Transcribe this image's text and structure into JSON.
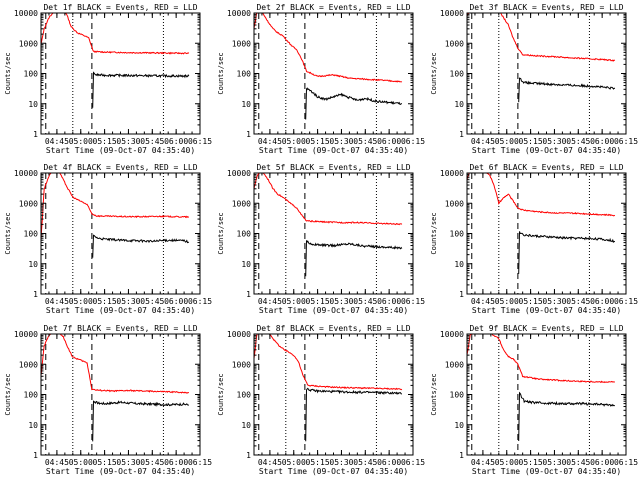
{
  "chart_data": [
    {
      "type": "line",
      "title": "Det 1f BLACK = Events, RED = LLD",
      "xlabel": "Start Time (09-Oct-07 04:35:40)",
      "ylabel": "Counts/sec",
      "ylog": true,
      "ylim": [
        1,
        10000
      ],
      "xlim": [
        "04:35",
        "06:15"
      ],
      "xticks": [
        "04:45",
        "05:00",
        "05:15",
        "05:30",
        "05:45",
        "06:00",
        "06:15"
      ],
      "yticks": [
        "1",
        "10",
        "100",
        "1000",
        "10000"
      ],
      "vlines_dashed": [
        "04:38",
        "05:07"
      ],
      "vlines_dotted": [
        "04:55",
        "05:52"
      ],
      "series": [
        {
          "color": "#ff0000",
          "x": [
            "04:35",
            "04:37",
            "04:40",
            "04:43",
            "04:46",
            "04:48",
            "04:51",
            "04:54",
            "04:58",
            "05:02",
            "05:05",
            "05:08",
            "05:15",
            "05:30",
            "05:45",
            "06:00",
            "06:08"
          ],
          "values": [
            900,
            3000,
            7000,
            11000,
            12000,
            11000,
            9500,
            3500,
            2200,
            1800,
            1500,
            530,
            510,
            490,
            480,
            470,
            465
          ]
        },
        {
          "color": "#000000",
          "x": [
            "05:07.5",
            "05:08",
            "05:10",
            "05:15",
            "05:30",
            "05:45",
            "06:00",
            "06:08"
          ],
          "values": [
            8,
            100,
            90,
            88,
            86,
            84,
            83,
            82
          ]
        }
      ]
    },
    {
      "type": "line",
      "title": "Det 2f BLACK = Events, RED = LLD",
      "xlabel": "Start Time (09-Oct-07 04:35:40)",
      "ylabel": "Counts/sec",
      "ylog": true,
      "ylim": [
        1,
        10000
      ],
      "xlim": [
        "04:35",
        "06:15"
      ],
      "xticks": [
        "04:45",
        "05:00",
        "05:15",
        "05:30",
        "05:45",
        "06:00",
        "06:15"
      ],
      "yticks": [
        "1",
        "10",
        "100",
        "1000",
        "10000"
      ],
      "vlines_dashed": [
        "04:38",
        "05:07"
      ],
      "vlines_dotted": [
        "04:55",
        "05:52"
      ],
      "series": [
        {
          "color": "#ff0000",
          "x": [
            "04:35",
            "04:37",
            "04:39",
            "04:41",
            "04:44",
            "04:47",
            "04:50",
            "04:53",
            "04:56",
            "04:59",
            "05:02",
            "05:05",
            "05:08",
            "05:15",
            "05:25",
            "05:35",
            "05:45",
            "05:55",
            "06:05",
            "06:08"
          ],
          "values": [
            3000,
            12000,
            14000,
            9000,
            5000,
            3000,
            2200,
            1800,
            1200,
            800,
            600,
            300,
            120,
            80,
            90,
            70,
            65,
            60,
            55,
            52
          ]
        },
        {
          "color": "#000000",
          "x": [
            "05:07.5",
            "05:08",
            "05:11",
            "05:15",
            "05:20",
            "05:25",
            "05:30",
            "05:35",
            "05:40",
            "05:45",
            "05:52",
            "06:00",
            "06:08"
          ],
          "values": [
            3,
            32,
            26,
            17,
            14,
            17,
            20,
            16,
            13,
            15,
            12,
            11,
            10
          ]
        }
      ]
    },
    {
      "type": "line",
      "title": "Det 3f BLACK = Events, RED = LLD",
      "xlabel": "Start Time (09-Oct-07 04:35:40)",
      "ylabel": "Counts/sec",
      "ylog": true,
      "ylim": [
        1,
        10000
      ],
      "xlim": [
        "04:35",
        "06:15"
      ],
      "xticks": [
        "04:45",
        "05:00",
        "05:15",
        "05:30",
        "05:45",
        "06:00",
        "06:15"
      ],
      "yticks": [
        "1",
        "10",
        "100",
        "1000",
        "10000"
      ],
      "vlines_dashed": [
        "04:38",
        "05:07"
      ],
      "vlines_dotted": [
        "04:55",
        "05:52"
      ],
      "series": [
        {
          "color": "#ff0000",
          "x": [
            "04:35",
            "04:37",
            "04:40",
            "04:43",
            "04:46",
            "04:50",
            "04:55",
            "04:58",
            "05:01",
            "05:04",
            "05:07",
            "05:10",
            "05:20",
            "05:30",
            "05:40",
            "05:50",
            "06:00",
            "06:08"
          ],
          "values": [
            8000,
            13000,
            14000,
            14000,
            13500,
            13000,
            12000,
            7000,
            4000,
            1500,
            700,
            420,
            380,
            360,
            330,
            310,
            290,
            270
          ]
        },
        {
          "color": "#000000",
          "x": [
            "05:07.5",
            "05:08",
            "05:11",
            "05:15",
            "05:25",
            "05:35",
            "05:45",
            "05:55",
            "06:05",
            "06:08"
          ],
          "values": [
            12,
            70,
            50,
            48,
            45,
            42,
            40,
            38,
            33,
            32
          ]
        }
      ]
    },
    {
      "type": "line",
      "title": "Det 4f BLACK = Events, RED = LLD",
      "xlabel": "Start Time (09-Oct-07 04:35:40)",
      "ylabel": "Counts/sec",
      "ylog": true,
      "ylim": [
        1,
        10000
      ],
      "xlim": [
        "04:35",
        "06:15"
      ],
      "xticks": [
        "04:45",
        "05:00",
        "05:15",
        "05:30",
        "05:45",
        "06:00",
        "06:15"
      ],
      "yticks": [
        "1",
        "10",
        "100",
        "1000",
        "10000"
      ],
      "vlines_dashed": [
        "04:38",
        "05:07"
      ],
      "vlines_dotted": [
        "04:55",
        "05:52"
      ],
      "series": [
        {
          "color": "#ff0000",
          "x": [
            "04:35",
            "04:37",
            "04:40",
            "04:43",
            "04:46",
            "04:49",
            "04:52",
            "04:55",
            "04:58",
            "05:01",
            "05:04",
            "05:07",
            "05:10",
            "05:20",
            "05:30",
            "05:40",
            "05:50",
            "06:00",
            "06:08"
          ],
          "values": [
            60,
            3000,
            8000,
            14000,
            12000,
            6000,
            3000,
            1600,
            1300,
            1100,
            900,
            450,
            380,
            370,
            360,
            360,
            370,
            360,
            350
          ]
        },
        {
          "color": "#000000",
          "x": [
            "05:07.5",
            "05:08",
            "05:11",
            "05:15",
            "05:25",
            "05:35",
            "05:45",
            "05:55",
            "06:05",
            "06:08"
          ],
          "values": [
            15,
            85,
            70,
            65,
            60,
            58,
            55,
            60,
            58,
            52
          ]
        }
      ]
    },
    {
      "type": "line",
      "title": "Det 5f BLACK = Events, RED = LLD",
      "xlabel": "Start Time (09-Oct-07 04:35:40)",
      "ylabel": "Counts/sec",
      "ylog": true,
      "ylim": [
        1,
        10000
      ],
      "xlim": [
        "04:35",
        "06:15"
      ],
      "xticks": [
        "04:45",
        "05:00",
        "05:15",
        "05:30",
        "05:45",
        "06:00",
        "06:15"
      ],
      "yticks": [
        "1",
        "10",
        "100",
        "1000",
        "10000"
      ],
      "vlines_dashed": [
        "04:38",
        "05:07"
      ],
      "vlines_dotted": [
        "04:55",
        "05:52"
      ],
      "series": [
        {
          "color": "#ff0000",
          "x": [
            "04:35",
            "04:37",
            "04:39",
            "04:41",
            "04:44",
            "04:47",
            "04:50",
            "04:53",
            "04:56",
            "04:59",
            "05:02",
            "05:05",
            "05:08",
            "05:20",
            "05:30",
            "05:40",
            "05:50",
            "06:00",
            "06:08"
          ],
          "values": [
            3000,
            8000,
            12000,
            10000,
            6000,
            3000,
            2000,
            1600,
            1200,
            900,
            700,
            400,
            260,
            240,
            230,
            230,
            220,
            210,
            200
          ]
        },
        {
          "color": "#000000",
          "x": [
            "05:07.5",
            "05:08",
            "05:11",
            "05:15",
            "05:25",
            "05:35",
            "05:45",
            "05:55",
            "06:05",
            "06:08"
          ],
          "values": [
            4,
            55,
            45,
            42,
            40,
            46,
            38,
            36,
            34,
            32
          ]
        }
      ]
    },
    {
      "type": "line",
      "title": "Det 6f BLACK = Events, RED = LLD",
      "xlabel": "Start Time (09-Oct-07 04:35:40)",
      "ylabel": "Counts/sec",
      "ylog": true,
      "ylim": [
        1,
        10000
      ],
      "xlim": [
        "04:35",
        "06:15"
      ],
      "xticks": [
        "04:45",
        "05:00",
        "05:15",
        "05:30",
        "05:45",
        "06:00",
        "06:15"
      ],
      "yticks": [
        "1",
        "10",
        "100",
        "1000",
        "10000"
      ],
      "vlines_dashed": [
        "04:38",
        "05:07"
      ],
      "vlines_dotted": [
        "04:55",
        "05:52"
      ],
      "series": [
        {
          "color": "#ff0000",
          "x": [
            "04:35",
            "04:37",
            "04:40",
            "04:43",
            "04:46",
            "04:49",
            "04:52",
            "04:55",
            "04:58",
            "05:01",
            "05:04",
            "05:07",
            "05:10",
            "05:20",
            "05:30",
            "05:40",
            "05:50",
            "06:00",
            "06:08"
          ],
          "values": [
            6000,
            12000,
            14000,
            13000,
            12000,
            9000,
            4000,
            1000,
            1500,
            2000,
            1200,
            700,
            600,
            520,
            480,
            470,
            450,
            420,
            400
          ]
        },
        {
          "color": "#000000",
          "x": [
            "05:07.5",
            "05:08",
            "05:11",
            "05:15",
            "05:25",
            "05:35",
            "05:45",
            "05:55",
            "06:05",
            "06:08"
          ],
          "values": [
            5,
            110,
            90,
            85,
            78,
            72,
            70,
            68,
            60,
            55
          ]
        }
      ]
    },
    {
      "type": "line",
      "title": "Det 7f BLACK = Events, RED = LLD",
      "xlabel": "Start Time (09-Oct-07 04:35:40)",
      "ylabel": "Counts/sec",
      "ylog": true,
      "ylim": [
        1,
        10000
      ],
      "xlim": [
        "04:35",
        "06:15"
      ],
      "xticks": [
        "04:45",
        "05:00",
        "05:15",
        "05:30",
        "05:45",
        "06:00",
        "06:15"
      ],
      "yticks": [
        "1",
        "10",
        "100",
        "1000",
        "10000"
      ],
      "vlines_dashed": [
        "04:38",
        "05:07"
      ],
      "vlines_dotted": [
        "04:55",
        "05:52"
      ],
      "series": [
        {
          "color": "#ff0000",
          "x": [
            "04:35",
            "04:37",
            "04:40",
            "04:43",
            "04:46",
            "04:49",
            "04:52",
            "04:55",
            "04:58",
            "05:01",
            "05:04",
            "05:07",
            "05:10",
            "05:20",
            "05:30",
            "05:40",
            "05:50",
            "06:00",
            "06:08"
          ],
          "values": [
            400,
            4000,
            9000,
            14000,
            12000,
            8000,
            3500,
            1700,
            1500,
            1300,
            1100,
            150,
            140,
            130,
            135,
            130,
            125,
            120,
            115
          ]
        },
        {
          "color": "#000000",
          "x": [
            "05:07.5",
            "05:08",
            "05:11",
            "05:15",
            "05:25",
            "05:35",
            "05:45",
            "05:55",
            "06:05",
            "06:08"
          ],
          "values": [
            3,
            60,
            52,
            50,
            55,
            50,
            48,
            46,
            48,
            45
          ]
        }
      ]
    },
    {
      "type": "line",
      "title": "Det 8f BLACK = Events, RED = LLD",
      "xlabel": "Start Time (09-Oct-07 04:35:40)",
      "ylabel": "Counts/sec",
      "ylog": true,
      "ylim": [
        1,
        10000
      ],
      "xlim": [
        "04:35",
        "06:15"
      ],
      "xticks": [
        "04:45",
        "05:00",
        "05:15",
        "05:30",
        "05:45",
        "06:00",
        "06:15"
      ],
      "yticks": [
        "1",
        "10",
        "100",
        "1000",
        "10000"
      ],
      "vlines_dashed": [
        "04:38",
        "05:07"
      ],
      "vlines_dotted": [
        "04:55",
        "05:52"
      ],
      "series": [
        {
          "color": "#ff0000",
          "x": [
            "04:35",
            "04:37",
            "04:39",
            "04:42",
            "04:45",
            "04:48",
            "04:51",
            "04:54",
            "04:57",
            "05:00",
            "05:03",
            "05:06",
            "05:09",
            "05:20",
            "05:30",
            "05:40",
            "05:50",
            "06:00",
            "06:08"
          ],
          "values": [
            1500,
            12000,
            15000,
            13000,
            10000,
            6000,
            4000,
            3000,
            2500,
            2000,
            1200,
            400,
            200,
            180,
            170,
            165,
            160,
            155,
            150
          ]
        },
        {
          "color": "#000000",
          "x": [
            "05:07.5",
            "05:08",
            "05:11",
            "05:15",
            "05:25",
            "05:35",
            "05:45",
            "05:55",
            "06:05",
            "06:08"
          ],
          "values": [
            3,
            150,
            140,
            130,
            125,
            120,
            118,
            115,
            110,
            105
          ]
        }
      ]
    },
    {
      "type": "line",
      "title": "Det 9f BLACK = Events, RED = LLD",
      "xlabel": "Start Time (09-Oct-07 04:35:40)",
      "ylabel": "Counts/sec",
      "ylog": true,
      "ylim": [
        1,
        10000
      ],
      "xlim": [
        "04:35",
        "06:15"
      ],
      "xticks": [
        "04:45",
        "05:00",
        "05:15",
        "05:30",
        "05:45",
        "06:00",
        "06:15"
      ],
      "yticks": [
        "1",
        "10",
        "100",
        "1000",
        "10000"
      ],
      "vlines_dashed": [
        "04:38",
        "05:07"
      ],
      "vlines_dotted": [
        "04:55",
        "05:52"
      ],
      "series": [
        {
          "color": "#ff0000",
          "x": [
            "04:35",
            "04:37",
            "04:40",
            "04:43",
            "04:46",
            "04:49",
            "04:52",
            "04:55",
            "04:58",
            "05:01",
            "05:04",
            "05:07",
            "05:10",
            "05:20",
            "05:30",
            "05:40",
            "05:50",
            "06:00",
            "06:08"
          ],
          "values": [
            2000,
            9000,
            13000,
            14000,
            12000,
            11000,
            9000,
            7000,
            3000,
            1800,
            1500,
            1000,
            400,
            320,
            300,
            280,
            270,
            260,
            260
          ]
        },
        {
          "color": "#000000",
          "x": [
            "05:07.5",
            "05:08",
            "05:11",
            "05:15",
            "05:25",
            "05:35",
            "05:45",
            "05:55",
            "06:05",
            "06:08"
          ],
          "values": [
            3,
            110,
            60,
            55,
            52,
            50,
            50,
            48,
            45,
            43
          ]
        }
      ]
    }
  ]
}
